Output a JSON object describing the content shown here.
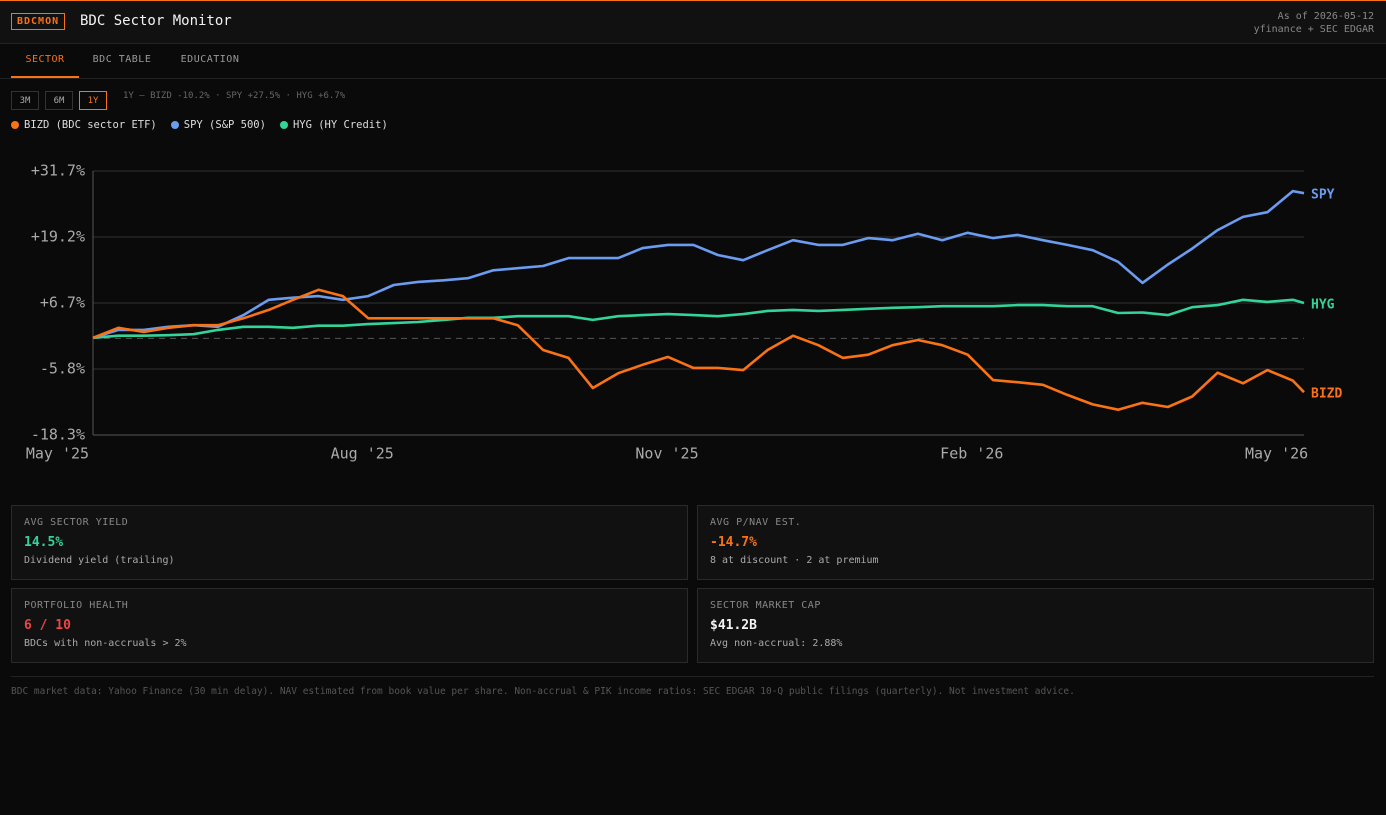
{
  "header": {
    "badge": "BDCMON",
    "title": "BDC Sector Monitor",
    "as_of": "As of 2026-05-12",
    "source": "yfinance + SEC EDGAR"
  },
  "tabs": {
    "items": [
      "SECTOR",
      "BDC TABLE",
      "EDUCATION"
    ],
    "active": 0
  },
  "ranges": {
    "items": [
      "3M",
      "6M",
      "1Y"
    ],
    "active": 2
  },
  "summary": "1Y — BIZD -10.2% · SPY +27.5% · HYG +6.7%",
  "chart_data": {
    "type": "line",
    "x": [
      0.35,
      0.6,
      0.85,
      1.09,
      1.34,
      1.58,
      1.83,
      2.08,
      2.32,
      2.57,
      2.81,
      3.06,
      3.31,
      3.55,
      3.8,
      4.04,
      4.29,
      4.53,
      4.78,
      5.03,
      5.27,
      5.52,
      5.76,
      6.01,
      6.26,
      6.5,
      6.75,
      6.99,
      7.24,
      7.49,
      7.73,
      7.98,
      8.22,
      8.47,
      8.71,
      8.96,
      9.21,
      9.45,
      9.7,
      9.94,
      10.19,
      10.44,
      10.68,
      10.93,
      11.17,
      11.42,
      11.67,
      11.91,
      12.16,
      12.27
    ],
    "xlim": [
      0.35,
      12.27
    ],
    "xticks": [
      {
        "value": 0,
        "label": "May '25"
      },
      {
        "value": 3,
        "label": "Aug '25"
      },
      {
        "value": 6,
        "label": "Nov '25"
      },
      {
        "value": 9,
        "label": "Feb '26"
      },
      {
        "value": 12,
        "label": "May '26"
      }
    ],
    "ylim": [
      -18.3,
      31.7
    ],
    "yticks": [
      {
        "value": 31.7,
        "label": "+31.7%"
      },
      {
        "value": 19.2,
        "label": "+19.2%"
      },
      {
        "value": 6.7,
        "label": "+6.7%"
      },
      {
        "value": -5.8,
        "label": "-5.8%"
      },
      {
        "value": -18.3,
        "label": "-18.3%"
      }
    ],
    "grid": true,
    "legend": "top-left",
    "series": [
      {
        "name": "BIZD (BDC sector ETF)",
        "label": "BIZD",
        "color": "#f97316",
        "values": [
          0.1,
          2.0,
          1.2,
          2.0,
          2.5,
          2.5,
          3.8,
          5.4,
          7.3,
          9.2,
          8.0,
          3.8,
          3.8,
          3.8,
          3.8,
          3.8,
          3.8,
          2.5,
          -2.2,
          -3.7,
          -9.4,
          -6.6,
          -5.0,
          -3.5,
          -5.6,
          -5.6,
          -6.0,
          -2.2,
          0.5,
          -1.3,
          -3.7,
          -3.1,
          -1.3,
          -0.3,
          -1.3,
          -3.1,
          -7.9,
          -8.3,
          -8.8,
          -10.7,
          -12.5,
          -13.5,
          -12.2,
          -13.0,
          -11.0,
          -6.5,
          -8.5,
          -6.0,
          -8.0,
          -10.2
        ]
      },
      {
        "name": "SPY (S&P 500)",
        "label": "SPY",
        "color": "#6b9cf0",
        "values": [
          0.1,
          1.6,
          1.6,
          2.2,
          2.5,
          2.2,
          4.4,
          7.3,
          7.7,
          8.0,
          7.3,
          8.0,
          10.1,
          10.7,
          11.0,
          11.4,
          12.9,
          13.3,
          13.7,
          15.2,
          15.2,
          15.2,
          17.1,
          17.7,
          17.7,
          15.8,
          14.8,
          16.7,
          18.6,
          17.7,
          17.7,
          19.0,
          18.6,
          19.8,
          18.6,
          20.0,
          19.0,
          19.6,
          18.6,
          17.7,
          16.7,
          14.5,
          10.5,
          14.0,
          17.0,
          20.5,
          23.0,
          23.9,
          27.9,
          27.5
        ]
      },
      {
        "name": "HYG (HY Credit)",
        "label": "HYG",
        "color": "#34d399",
        "values": [
          0.1,
          0.5,
          0.5,
          0.6,
          0.8,
          1.6,
          2.2,
          2.2,
          2.0,
          2.4,
          2.4,
          2.7,
          2.9,
          3.1,
          3.5,
          3.9,
          3.9,
          4.2,
          4.2,
          4.2,
          3.5,
          4.2,
          4.4,
          4.6,
          4.4,
          4.2,
          4.6,
          5.2,
          5.4,
          5.2,
          5.4,
          5.6,
          5.8,
          5.9,
          6.1,
          6.1,
          6.1,
          6.3,
          6.3,
          6.1,
          6.1,
          4.8,
          4.9,
          4.4,
          5.9,
          6.3,
          7.3,
          6.9,
          7.3,
          6.7
        ]
      }
    ]
  },
  "cards": [
    {
      "label": "AVG SECTOR YIELD",
      "value": "14.5%",
      "color": "#34d399",
      "note": "Dividend yield (trailing)"
    },
    {
      "label": "AVG P/NAV EST.",
      "value": "-14.7%",
      "color": "#f97316",
      "note": "8 at discount · 2 at premium"
    },
    {
      "label": "PORTFOLIO HEALTH",
      "value": "6 / 10",
      "color": "#ef4444",
      "note": "BDCs with non-accruals > 2%"
    },
    {
      "label": "SECTOR MARKET CAP",
      "value": "$41.2B",
      "color": "#f2f2f2",
      "note": "Avg non-accrual: 2.88%"
    }
  ],
  "footer": "BDC market data: Yahoo Finance (30 min delay). NAV estimated from book value per share. Non-accrual & PIK income ratios: SEC EDGAR 10-Q public filings (quarterly). Not investment advice."
}
